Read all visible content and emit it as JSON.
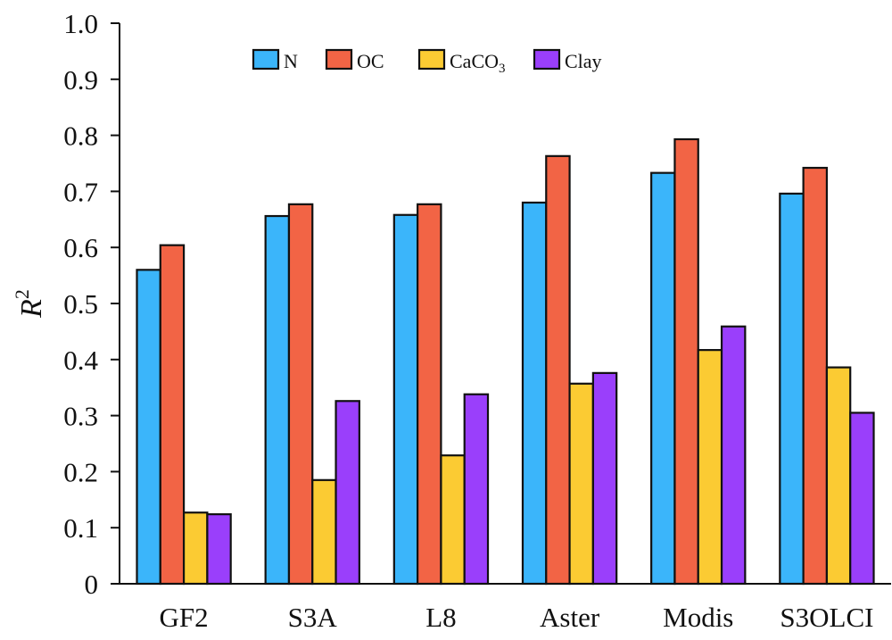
{
  "chart_data": {
    "type": "bar",
    "title": "",
    "xlabel": "",
    "ylabel": "R",
    "ylabel_superscript": "2",
    "ylim": [
      0,
      1.0
    ],
    "yticks": [
      0,
      0.1,
      0.2,
      0.3,
      0.4,
      0.5,
      0.6,
      0.7,
      0.8,
      0.9,
      1.0
    ],
    "ytick_labels": [
      "0",
      "0.1",
      "0.2",
      "0.3",
      "0.4",
      "0.5",
      "0.6",
      "0.7",
      "0.8",
      "0.9",
      "1.0"
    ],
    "grid": false,
    "legend_position": "top-center",
    "categories": [
      "GF2",
      "S3A",
      "L8",
      "Aster",
      "Modis",
      "S3OLCI"
    ],
    "series": [
      {
        "name": "N",
        "label_main": "N",
        "label_sub": "",
        "color": "#3BB5FA",
        "values": [
          0.56,
          0.656,
          0.658,
          0.68,
          0.733,
          0.696
        ]
      },
      {
        "name": "OC",
        "label_main": "OC",
        "label_sub": "",
        "color": "#F26445",
        "values": [
          0.604,
          0.677,
          0.677,
          0.763,
          0.793,
          0.742
        ]
      },
      {
        "name": "CaCO3",
        "label_main": "CaCO",
        "label_sub": "3",
        "color": "#FBCB33",
        "values": [
          0.127,
          0.185,
          0.229,
          0.357,
          0.417,
          0.386
        ]
      },
      {
        "name": "Clay",
        "label_main": "Clay",
        "label_sub": "",
        "color": "#9A3FFB",
        "values": [
          0.124,
          0.326,
          0.338,
          0.376,
          0.459,
          0.305
        ]
      }
    ]
  }
}
